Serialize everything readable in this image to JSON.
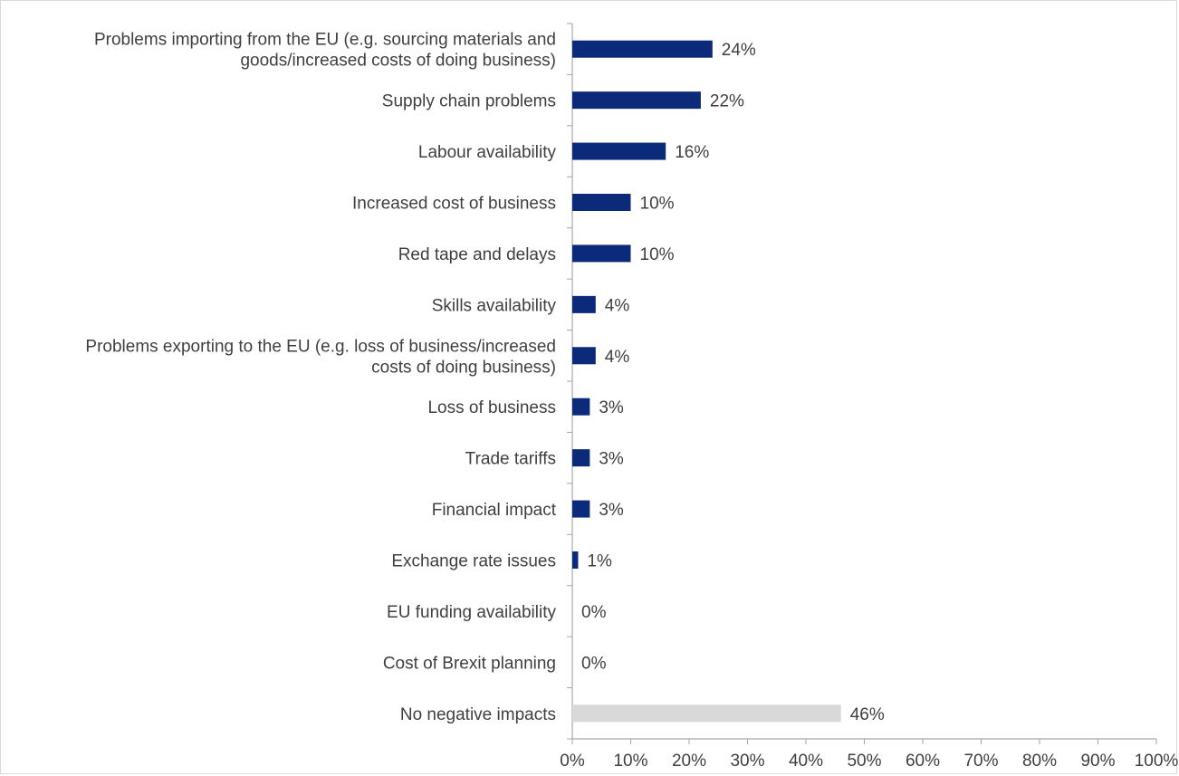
{
  "chart_data": {
    "type": "bar",
    "orientation": "horizontal",
    "title": "",
    "xlabel": "",
    "ylabel": "",
    "xlim": [
      0,
      100
    ],
    "grid": false,
    "legend": "none",
    "categories": [
      [
        "Problems importing from the EU (e.g. sourcing materials and",
        "goods/increased costs of doing business)"
      ],
      [
        "Supply chain problems"
      ],
      [
        "Labour availability"
      ],
      [
        "Increased cost of business"
      ],
      [
        "Red tape and delays"
      ],
      [
        "Skills availability"
      ],
      [
        "Problems exporting to the EU (e.g. loss of business/increased",
        "costs of doing business)"
      ],
      [
        "Loss of business"
      ],
      [
        "Trade tariffs"
      ],
      [
        "Financial impact"
      ],
      [
        "Exchange rate issues"
      ],
      [
        "EU funding availability"
      ],
      [
        "Cost of Brexit planning"
      ],
      [
        "No negative impacts"
      ]
    ],
    "values": [
      24,
      22,
      16,
      10,
      10,
      4,
      4,
      3,
      3,
      3,
      1,
      0,
      0,
      46
    ],
    "value_labels": [
      "24%",
      "22%",
      "16%",
      "10%",
      "10%",
      "4%",
      "4%",
      "3%",
      "3%",
      "3%",
      "1%",
      "0%",
      "0%",
      "46%"
    ],
    "bar_colors": [
      "#0b2a7a",
      "#0b2a7a",
      "#0b2a7a",
      "#0b2a7a",
      "#0b2a7a",
      "#0b2a7a",
      "#0b2a7a",
      "#0b2a7a",
      "#0b2a7a",
      "#0b2a7a",
      "#0b2a7a",
      "#0b2a7a",
      "#0b2a7a",
      "#d9d9d9"
    ],
    "x_ticks": [
      "0%",
      "10%",
      "20%",
      "30%",
      "40%",
      "50%",
      "60%",
      "70%",
      "80%",
      "90%",
      "100%"
    ],
    "axis_color": "#a6a6a6"
  }
}
